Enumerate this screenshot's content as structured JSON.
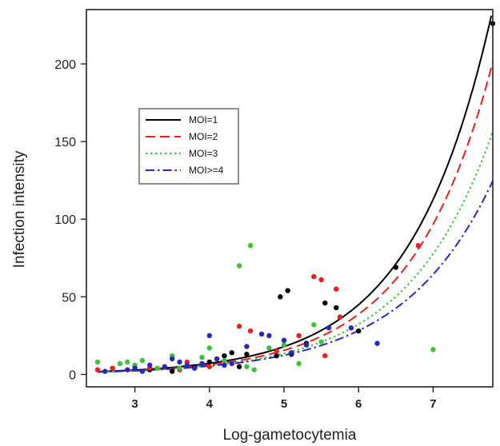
{
  "chart_data": {
    "type": "scatter",
    "xlabel": "Log-gametocytemia",
    "ylabel": "Infection intensity",
    "xlim": [
      2.35,
      7.8
    ],
    "ylim": [
      -8,
      235
    ],
    "x_ticks": [
      3,
      4,
      5,
      6,
      7
    ],
    "y_ticks": [
      0,
      50,
      100,
      150,
      200
    ],
    "grid": false,
    "legend_position": "upper-left",
    "series": [
      {
        "name": "MOI=1",
        "color": "#000000",
        "dash": "solid",
        "curve": {
          "a": 0.18,
          "b": 0.92
        },
        "points": [
          [
            3.2,
            3
          ],
          [
            3.5,
            2
          ],
          [
            3.8,
            5
          ],
          [
            4.0,
            8
          ],
          [
            4.1,
            10
          ],
          [
            4.2,
            12
          ],
          [
            4.3,
            14
          ],
          [
            4.4,
            5
          ],
          [
            4.5,
            13
          ],
          [
            4.9,
            12
          ],
          [
            4.95,
            50
          ],
          [
            5.05,
            54
          ],
          [
            5.1,
            13
          ],
          [
            5.3,
            20
          ],
          [
            5.55,
            46
          ],
          [
            5.7,
            43
          ],
          [
            6.0,
            28
          ],
          [
            6.5,
            69
          ],
          [
            7.8,
            226
          ]
        ]
      },
      {
        "name": "MOI=2",
        "color": "#e8211d",
        "dash": "dashed",
        "curve": {
          "a": 0.16,
          "b": 0.915
        },
        "points": [
          [
            2.5,
            3
          ],
          [
            2.7,
            4
          ],
          [
            3.0,
            5
          ],
          [
            3.2,
            4
          ],
          [
            3.6,
            3
          ],
          [
            3.7,
            8
          ],
          [
            4.0,
            5
          ],
          [
            4.2,
            6
          ],
          [
            4.4,
            31
          ],
          [
            4.55,
            28
          ],
          [
            4.9,
            15
          ],
          [
            5.0,
            22
          ],
          [
            5.2,
            25
          ],
          [
            5.4,
            63
          ],
          [
            5.5,
            61
          ],
          [
            5.55,
            12
          ],
          [
            5.7,
            55
          ],
          [
            5.75,
            37
          ],
          [
            6.8,
            83
          ]
        ]
      },
      {
        "name": "MOI=3",
        "color": "#3ec23a",
        "dash": "dotted",
        "curve": {
          "a": 0.17,
          "b": 0.875
        },
        "points": [
          [
            2.5,
            8
          ],
          [
            2.8,
            7
          ],
          [
            2.9,
            8
          ],
          [
            3.0,
            6
          ],
          [
            3.1,
            9
          ],
          [
            3.3,
            4
          ],
          [
            3.5,
            12
          ],
          [
            3.6,
            4
          ],
          [
            3.9,
            11
          ],
          [
            4.0,
            17
          ],
          [
            4.2,
            9
          ],
          [
            4.4,
            70
          ],
          [
            4.5,
            5
          ],
          [
            4.55,
            83
          ],
          [
            4.6,
            3
          ],
          [
            4.8,
            17
          ],
          [
            5.0,
            19
          ],
          [
            5.2,
            7
          ],
          [
            5.4,
            32
          ],
          [
            5.5,
            21
          ],
          [
            7.0,
            16
          ]
        ]
      },
      {
        "name": "MOI>=4",
        "color": "#2727c2",
        "dash": "dashdot",
        "curve": {
          "a": 0.2,
          "b": 0.825
        },
        "points": [
          [
            2.6,
            2
          ],
          [
            2.9,
            3
          ],
          [
            3.0,
            4
          ],
          [
            3.1,
            2
          ],
          [
            3.2,
            6
          ],
          [
            3.4,
            5
          ],
          [
            3.5,
            10
          ],
          [
            3.6,
            8
          ],
          [
            3.7,
            6
          ],
          [
            3.8,
            4
          ],
          [
            3.9,
            7
          ],
          [
            4.0,
            25
          ],
          [
            4.1,
            10
          ],
          [
            4.2,
            6
          ],
          [
            4.3,
            7
          ],
          [
            4.5,
            18
          ],
          [
            4.7,
            26
          ],
          [
            4.8,
            25
          ],
          [
            5.0,
            22
          ],
          [
            5.1,
            14
          ],
          [
            5.3,
            19
          ],
          [
            5.6,
            30
          ],
          [
            5.9,
            30
          ],
          [
            6.25,
            20
          ]
        ]
      }
    ]
  }
}
